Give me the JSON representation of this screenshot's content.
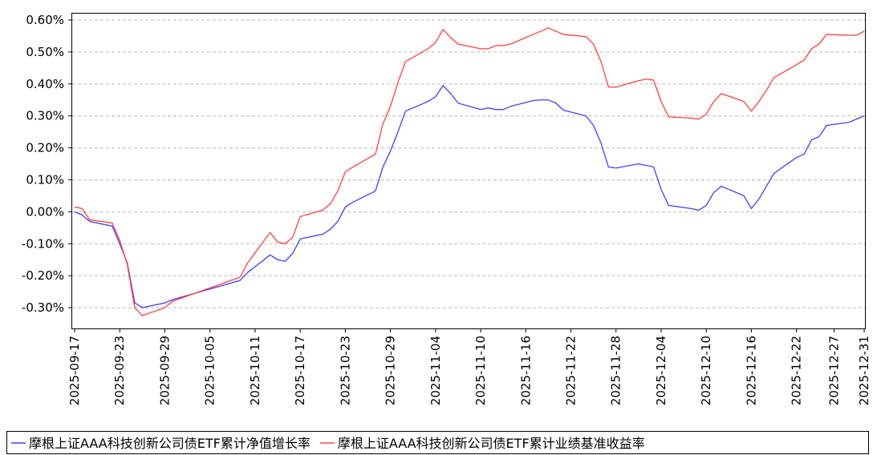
{
  "chart_data": {
    "type": "line",
    "x": [
      "2025-09-17",
      "2025-09-18",
      "2025-09-19",
      "2025-09-22",
      "2025-09-23",
      "2025-09-24",
      "2025-09-25",
      "2025-09-26",
      "2025-09-29",
      "2025-09-30",
      "2025-10-09",
      "2025-10-10",
      "2025-10-13",
      "2025-10-14",
      "2025-10-15",
      "2025-10-16",
      "2025-10-17",
      "2025-10-20",
      "2025-10-21",
      "2025-10-22",
      "2025-10-23",
      "2025-10-24",
      "2025-10-27",
      "2025-10-28",
      "2025-10-29",
      "2025-10-30",
      "2025-10-31",
      "2025-11-03",
      "2025-11-04",
      "2025-11-05",
      "2025-11-06",
      "2025-11-07",
      "2025-11-10",
      "2025-11-11",
      "2025-11-12",
      "2025-11-13",
      "2025-11-14",
      "2025-11-17",
      "2025-11-18",
      "2025-11-19",
      "2025-11-20",
      "2025-11-21",
      "2025-11-24",
      "2025-11-25",
      "2025-11-26",
      "2025-11-27",
      "2025-11-28",
      "2025-12-01",
      "2025-12-02",
      "2025-12-03",
      "2025-12-04",
      "2025-12-05",
      "2025-12-08",
      "2025-12-09",
      "2025-12-10",
      "2025-12-11",
      "2025-12-12",
      "2025-12-15",
      "2025-12-16",
      "2025-12-17",
      "2025-12-18",
      "2025-12-19",
      "2025-12-22",
      "2025-12-23",
      "2025-12-24",
      "2025-12-25",
      "2025-12-26",
      "2025-12-29",
      "2025-12-30",
      "2025-12-31"
    ],
    "series": [
      {
        "name": "摩根上证AAA科技创新公司债ETF累计净值增长率",
        "color": "#4040ff",
        "values": [
          0.0,
          -0.01,
          -0.03,
          -0.045,
          -0.1,
          -0.16,
          -0.285,
          -0.3,
          -0.285,
          -0.275,
          -0.215,
          -0.19,
          -0.135,
          -0.15,
          -0.155,
          -0.13,
          -0.085,
          -0.07,
          -0.055,
          -0.03,
          0.015,
          0.03,
          0.065,
          0.14,
          0.19,
          0.25,
          0.315,
          0.345,
          0.36,
          0.395,
          0.37,
          0.34,
          0.32,
          0.325,
          0.32,
          0.32,
          0.33,
          0.348,
          0.35,
          0.35,
          0.34,
          0.318,
          0.3,
          0.27,
          0.215,
          0.14,
          0.137,
          0.15,
          0.145,
          0.14,
          0.07,
          0.02,
          0.01,
          0.005,
          0.02,
          0.06,
          0.08,
          0.05,
          0.01,
          0.04,
          0.08,
          0.12,
          0.17,
          0.18,
          0.225,
          0.235,
          0.27,
          0.28,
          0.29,
          0.3
        ]
      },
      {
        "name": "摩根上证AAA科技创新公司债ETF累计业绩基准收益率",
        "color": "#ff4040",
        "values": [
          0.015,
          0.01,
          -0.025,
          -0.035,
          -0.09,
          -0.165,
          -0.3,
          -0.325,
          -0.3,
          -0.28,
          -0.205,
          -0.16,
          -0.065,
          -0.095,
          -0.1,
          -0.08,
          -0.015,
          0.005,
          0.025,
          0.065,
          0.125,
          0.14,
          0.18,
          0.275,
          0.33,
          0.405,
          0.47,
          0.51,
          0.53,
          0.57,
          0.545,
          0.525,
          0.51,
          0.51,
          0.52,
          0.52,
          0.525,
          0.555,
          0.565,
          0.575,
          0.565,
          0.555,
          0.548,
          0.525,
          0.47,
          0.39,
          0.39,
          0.41,
          0.415,
          0.412,
          0.345,
          0.297,
          0.293,
          0.29,
          0.305,
          0.345,
          0.37,
          0.345,
          0.315,
          0.345,
          0.38,
          0.42,
          0.46,
          0.475,
          0.51,
          0.525,
          0.555,
          0.552,
          0.552,
          0.565
        ]
      }
    ],
    "xlim": [
      "2025-09-17",
      "2025-12-31"
    ],
    "xticks": [
      "2025-09-17",
      "2025-09-23",
      "2025-09-29",
      "2025-10-05",
      "2025-10-11",
      "2025-10-17",
      "2025-10-23",
      "2025-10-29",
      "2025-11-04",
      "2025-11-10",
      "2025-11-16",
      "2025-11-22",
      "2025-11-28",
      "2025-12-04",
      "2025-12-10",
      "2025-12-16",
      "2025-12-22",
      "2025-12-27",
      "2025-12-31"
    ],
    "ylim": [
      -0.365,
      0.62
    ],
    "yticks": [
      {
        "value": -0.3,
        "label": "-0.30%"
      },
      {
        "value": -0.2,
        "label": "-0.20%"
      },
      {
        "value": -0.1,
        "label": "-0.10%"
      },
      {
        "value": 0,
        "label": "0.00%"
      },
      {
        "value": 0.1,
        "label": "0.10%"
      },
      {
        "value": 0.2,
        "label": "0.20%"
      },
      {
        "value": 0.3,
        "label": "0.30%"
      },
      {
        "value": 0.4,
        "label": "0.40%"
      },
      {
        "value": 0.5,
        "label": "0.50%"
      },
      {
        "value": 0.6,
        "label": "0.60%"
      }
    ],
    "grid": true
  }
}
